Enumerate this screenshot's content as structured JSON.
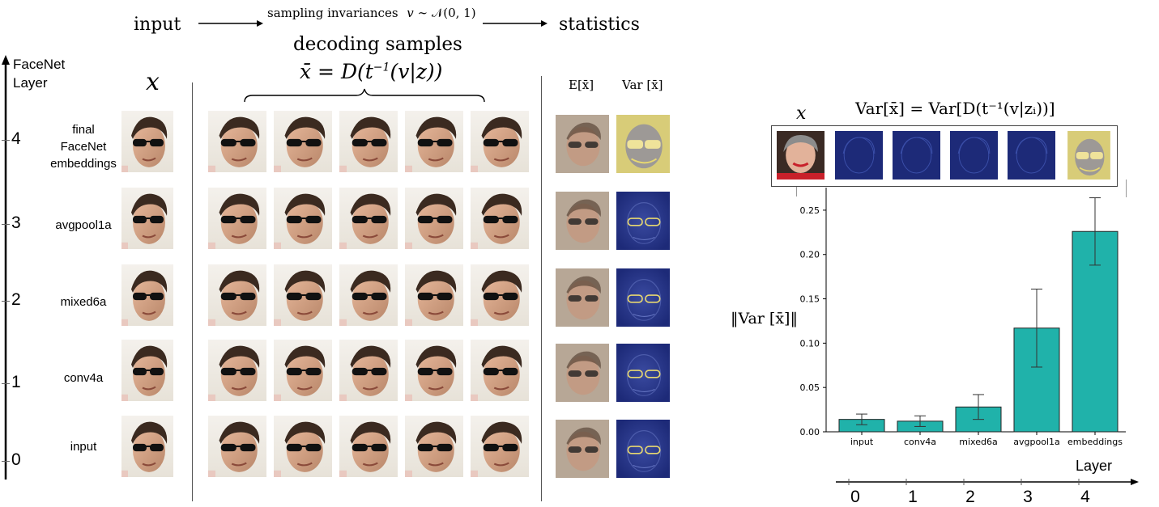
{
  "header": {
    "input": "input",
    "sampling": "sampling invariances",
    "statistics": "statistics",
    "decoding_samples": "decoding samples"
  },
  "left_axis": {
    "title_line1": "FaceNet",
    "title_line2": "Layer",
    "ticks": [
      "0",
      "1",
      "2",
      "3",
      "4"
    ]
  },
  "rows": [
    {
      "layer": "4",
      "name_lines": [
        "final",
        "FaceNet",
        "embeddings"
      ]
    },
    {
      "layer": "3",
      "name_lines": [
        "avgpool1a"
      ]
    },
    {
      "layer": "2",
      "name_lines": [
        "mixed6a"
      ]
    },
    {
      "layer": "1",
      "name_lines": [
        "conv4a"
      ]
    },
    {
      "layer": "0",
      "name_lines": [
        "input"
      ]
    }
  ],
  "column_labels": {
    "x": "x",
    "mean": "E[x̄]",
    "var": "Var [x̄]"
  },
  "colors": {
    "bar_fill": "#20b2aa",
    "bar_edge": "#222222",
    "var_dark": "#1d2a78",
    "var_light": "#e8d870"
  },
  "right_panel": {
    "x_label": "x",
    "top_formula": "Var[x̄] = Var[D(t⁻¹(v|zᵢ))]",
    "ylabel": "‖Var [x̄]‖",
    "bottom_axis_label": "Layer",
    "bottom_ticks": [
      "0",
      "1",
      "2",
      "3",
      "4"
    ]
  },
  "chart_data": {
    "type": "bar",
    "categories": [
      "input",
      "conv4a",
      "mixed6a",
      "avgpool1a",
      "embeddings"
    ],
    "values": [
      0.014,
      0.012,
      0.028,
      0.117,
      0.226
    ],
    "errors": [
      0.006,
      0.006,
      0.014,
      0.044,
      0.038
    ],
    "ylim": [
      0,
      0.27
    ],
    "yticks": [
      "0.00",
      "0.05",
      "0.10",
      "0.15",
      "0.20",
      "0.25"
    ],
    "title": "",
    "xlabel": "Layer",
    "ylabel": "‖Var [x̄]‖",
    "grid": false
  }
}
